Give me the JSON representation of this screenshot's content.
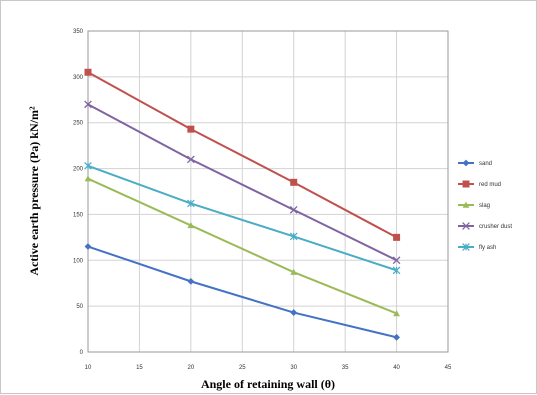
{
  "chart_data": {
    "type": "line",
    "title": "",
    "xlabel": "Angle of retaining wall (θ)",
    "ylabel": "Active earth pressure (Pa) kN/m²",
    "xlim": [
      10,
      45
    ],
    "ylim": [
      0,
      350
    ],
    "xticks": [
      "10",
      "15",
      "20",
      "25",
      "30",
      "35",
      "40",
      "45"
    ],
    "yticks": [
      "0",
      "50",
      "100",
      "150",
      "200",
      "250",
      "300",
      "350"
    ],
    "x": [
      10,
      20,
      30,
      40
    ],
    "grid": "vertical and horizontal major gridlines",
    "legend_position": "right",
    "series": [
      {
        "name": "sand",
        "values": [
          115,
          77,
          43,
          16
        ],
        "color": "#4472C4",
        "marker": "diamond"
      },
      {
        "name": "red mud",
        "values": [
          305,
          243,
          185,
          125
        ],
        "color": "#C0504D",
        "marker": "square"
      },
      {
        "name": "slag",
        "values": [
          189,
          138,
          87,
          42
        ],
        "color": "#9BBB59",
        "marker": "triangle"
      },
      {
        "name": "crusher dust",
        "values": [
          270,
          210,
          155,
          100
        ],
        "color": "#8064A2",
        "marker": "x"
      },
      {
        "name": "fly ash",
        "values": [
          203,
          162,
          126,
          89
        ],
        "color": "#4BACC6",
        "marker": "star"
      }
    ]
  }
}
